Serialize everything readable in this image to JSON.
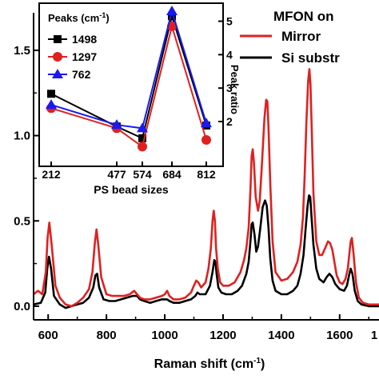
{
  "chart_data": [
    {
      "type": "line",
      "xlabel": "Raman shift (cm",
      "xlabel_sup": "-1",
      "xlabel_close": ")",
      "xlim": [
        550,
        1735
      ],
      "ylim": [
        -0.08,
        1.72
      ],
      "xticks": [
        600,
        800,
        1000,
        1200,
        1400,
        1600
      ],
      "xtick_last_partial": "1",
      "yticks": [
        0.0,
        0.5,
        1.0,
        1.5
      ],
      "ytick_labels": [
        "0.0",
        "0.5",
        "1.0",
        "1.5"
      ],
      "legend": {
        "title": "MFON on",
        "placement": "top-right",
        "entries": [
          "Mirror",
          "Si substr"
        ]
      },
      "series": [
        {
          "name": "Mirror",
          "color": "#e02020",
          "x": [
            550,
            565,
            580,
            592,
            598,
            604,
            612,
            625,
            640,
            660,
            680,
            700,
            720,
            740,
            752,
            760,
            766,
            772,
            782,
            800,
            820,
            840,
            860,
            880,
            895,
            905,
            915,
            930,
            950,
            970,
            990,
            1000,
            1008,
            1016,
            1030,
            1050,
            1070,
            1090,
            1100,
            1108,
            1115,
            1125,
            1140,
            1150,
            1158,
            1164,
            1168,
            1172,
            1176,
            1182,
            1190,
            1200,
            1220,
            1240,
            1260,
            1272,
            1280,
            1288,
            1294,
            1298,
            1302,
            1306,
            1312,
            1320,
            1326,
            1334,
            1342,
            1348,
            1352,
            1356,
            1362,
            1370,
            1380,
            1400,
            1420,
            1440,
            1455,
            1466,
            1474,
            1480,
            1486,
            1492,
            1496,
            1500,
            1504,
            1510,
            1520,
            1530,
            1540,
            1550,
            1560,
            1567,
            1575,
            1582,
            1590,
            1600,
            1610,
            1620,
            1628,
            1634,
            1638,
            1642,
            1648,
            1656,
            1666,
            1680,
            1700,
            1735
          ],
          "values": [
            0.07,
            0.09,
            0.07,
            0.2,
            0.4,
            0.49,
            0.36,
            0.12,
            0.05,
            0.01,
            0.0,
            0.02,
            0.05,
            0.1,
            0.2,
            0.37,
            0.45,
            0.36,
            0.17,
            0.07,
            0.06,
            0.06,
            0.06,
            0.07,
            0.09,
            0.07,
            0.05,
            0.04,
            0.04,
            0.05,
            0.06,
            0.07,
            0.09,
            0.06,
            0.04,
            0.04,
            0.05,
            0.08,
            0.12,
            0.15,
            0.14,
            0.11,
            0.14,
            0.22,
            0.34,
            0.5,
            0.56,
            0.5,
            0.34,
            0.22,
            0.14,
            0.12,
            0.12,
            0.14,
            0.2,
            0.27,
            0.34,
            0.46,
            0.68,
            0.88,
            0.92,
            0.84,
            0.64,
            0.56,
            0.62,
            0.85,
            1.1,
            1.21,
            1.2,
            1.05,
            0.72,
            0.38,
            0.2,
            0.15,
            0.16,
            0.2,
            0.26,
            0.36,
            0.52,
            0.76,
            1.08,
            1.32,
            1.39,
            1.3,
            1.05,
            0.66,
            0.38,
            0.3,
            0.3,
            0.34,
            0.38,
            0.37,
            0.33,
            0.26,
            0.18,
            0.14,
            0.13,
            0.16,
            0.22,
            0.32,
            0.38,
            0.4,
            0.3,
            0.14,
            0.05,
            0.02,
            0.01,
            0.01
          ]
        },
        {
          "name": "Si substr",
          "color": "#000000",
          "x": [
            550,
            575,
            590,
            597,
            603,
            610,
            620,
            640,
            660,
            680,
            700,
            720,
            740,
            755,
            762,
            768,
            775,
            790,
            810,
            830,
            850,
            870,
            890,
            905,
            915,
            930,
            950,
            970,
            990,
            1000,
            1008,
            1016,
            1030,
            1050,
            1070,
            1090,
            1105,
            1112,
            1120,
            1140,
            1155,
            1164,
            1170,
            1174,
            1178,
            1184,
            1194,
            1210,
            1230,
            1250,
            1265,
            1280,
            1288,
            1294,
            1298,
            1302,
            1308,
            1314,
            1320,
            1328,
            1336,
            1344,
            1350,
            1356,
            1362,
            1370,
            1380,
            1400,
            1420,
            1440,
            1455,
            1466,
            1476,
            1484,
            1490,
            1495,
            1499,
            1503,
            1510,
            1520,
            1530,
            1545,
            1555,
            1565,
            1575,
            1585,
            1600,
            1615,
            1625,
            1632,
            1638,
            1644,
            1652,
            1662,
            1675,
            1700,
            1735
          ],
          "values": [
            0.01,
            0.02,
            0.08,
            0.22,
            0.29,
            0.22,
            0.06,
            0.01,
            -0.01,
            0.0,
            0.01,
            0.02,
            0.05,
            0.11,
            0.18,
            0.19,
            0.11,
            0.04,
            0.03,
            0.03,
            0.04,
            0.05,
            0.06,
            0.06,
            0.04,
            0.03,
            0.02,
            0.03,
            0.04,
            0.04,
            0.04,
            0.03,
            0.02,
            0.02,
            0.03,
            0.04,
            0.06,
            0.08,
            0.07,
            0.07,
            0.12,
            0.2,
            0.27,
            0.26,
            0.19,
            0.11,
            0.08,
            0.07,
            0.07,
            0.09,
            0.12,
            0.19,
            0.26,
            0.38,
            0.48,
            0.49,
            0.42,
            0.32,
            0.35,
            0.46,
            0.58,
            0.62,
            0.59,
            0.46,
            0.28,
            0.15,
            0.09,
            0.07,
            0.07,
            0.09,
            0.12,
            0.19,
            0.3,
            0.47,
            0.59,
            0.65,
            0.64,
            0.54,
            0.36,
            0.22,
            0.16,
            0.14,
            0.17,
            0.19,
            0.17,
            0.13,
            0.1,
            0.09,
            0.12,
            0.18,
            0.22,
            0.19,
            0.09,
            0.03,
            0.01,
            0.0,
            0.0
          ]
        }
      ]
    },
    {
      "type": "line",
      "xlabel": "PS bead sizes",
      "ylabel": "Peak ratio",
      "legend_title": "Peaks (cm",
      "legend_title_sup": "-1",
      "legend_title_close": ")",
      "categories": [
        "212",
        "477",
        "574",
        "684",
        "812"
      ],
      "ylim": [
        0.9,
        5.3
      ],
      "yticks": [
        2,
        3,
        4,
        5
      ],
      "series": [
        {
          "name": "1498",
          "color": "#000000",
          "marker": "square",
          "values": [
            2.83,
            1.85,
            1.5,
            5.15,
            1.88
          ]
        },
        {
          "name": "1297",
          "color": "#e02020",
          "marker": "circle",
          "values": [
            2.4,
            1.8,
            1.25,
            4.85,
            1.45
          ]
        },
        {
          "name": "762",
          "color": "#1a1aee",
          "marker": "triangle",
          "values": [
            2.5,
            1.9,
            1.8,
            5.3,
            1.95
          ]
        }
      ]
    }
  ]
}
